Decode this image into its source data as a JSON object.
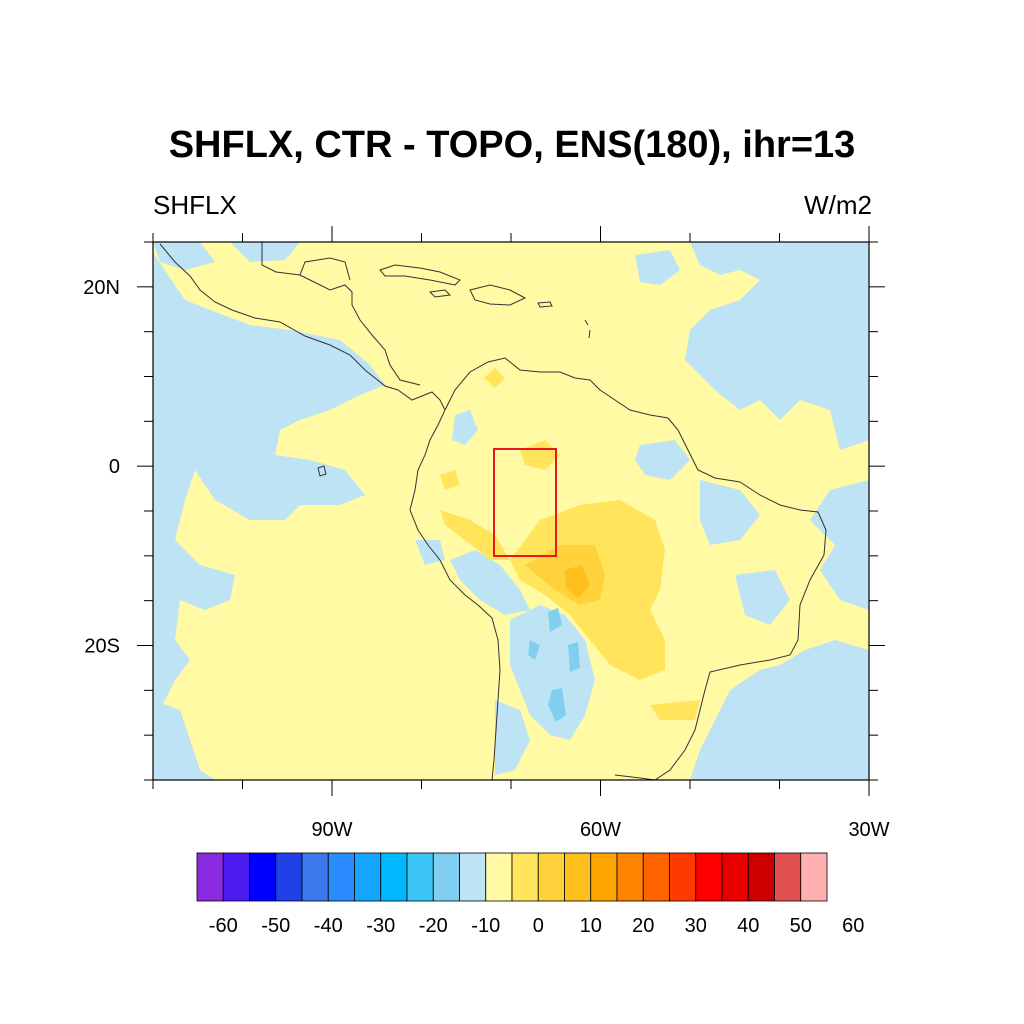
{
  "title": "SHFLX, CTR - TOPO, ENS(180), ihr=13",
  "left_subtitle": "SHFLX",
  "right_subtitle": "W/m2",
  "map": {
    "projection": "cylindrical-equidistant",
    "lon_range": [
      -110,
      -30
    ],
    "lat_range": [
      -35,
      25
    ],
    "x_ticks": [
      {
        "lon": -90,
        "label": "90W"
      },
      {
        "lon": -60,
        "label": "60W"
      },
      {
        "lon": -30,
        "label": "30W"
      }
    ],
    "y_ticks": [
      {
        "lat": 20,
        "label": "20N"
      },
      {
        "lat": 0,
        "label": "0"
      },
      {
        "lat": -20,
        "label": "20S"
      }
    ],
    "region_box": {
      "lon": [
        -72,
        -65
      ],
      "lat": [
        -10,
        2
      ],
      "color": "#e41a1c"
    },
    "background_color": "#fffaa3",
    "negative_color": "#bde3f5"
  },
  "colorbar": {
    "labels": [
      "-60",
      "-50",
      "-40",
      "-30",
      "-20",
      "-10",
      "0",
      "10",
      "20",
      "30",
      "40",
      "50",
      "60"
    ],
    "colors": [
      "#8a2be2",
      "#4b1bf0",
      "#0000ff",
      "#2040e8",
      "#3a78ec",
      "#2a8cff",
      "#14a6ff",
      "#00b8ff",
      "#3cc6f7",
      "#80cff0",
      "#bde3f5",
      "#fffaa3",
      "#ffe45c",
      "#ffd23c",
      "#ffbf1c",
      "#ffa500",
      "#ff8400",
      "#ff6300",
      "#ff3a00",
      "#ff0000",
      "#e80000",
      "#cc0000",
      "#e05050",
      "#ffb0b0"
    ]
  }
}
